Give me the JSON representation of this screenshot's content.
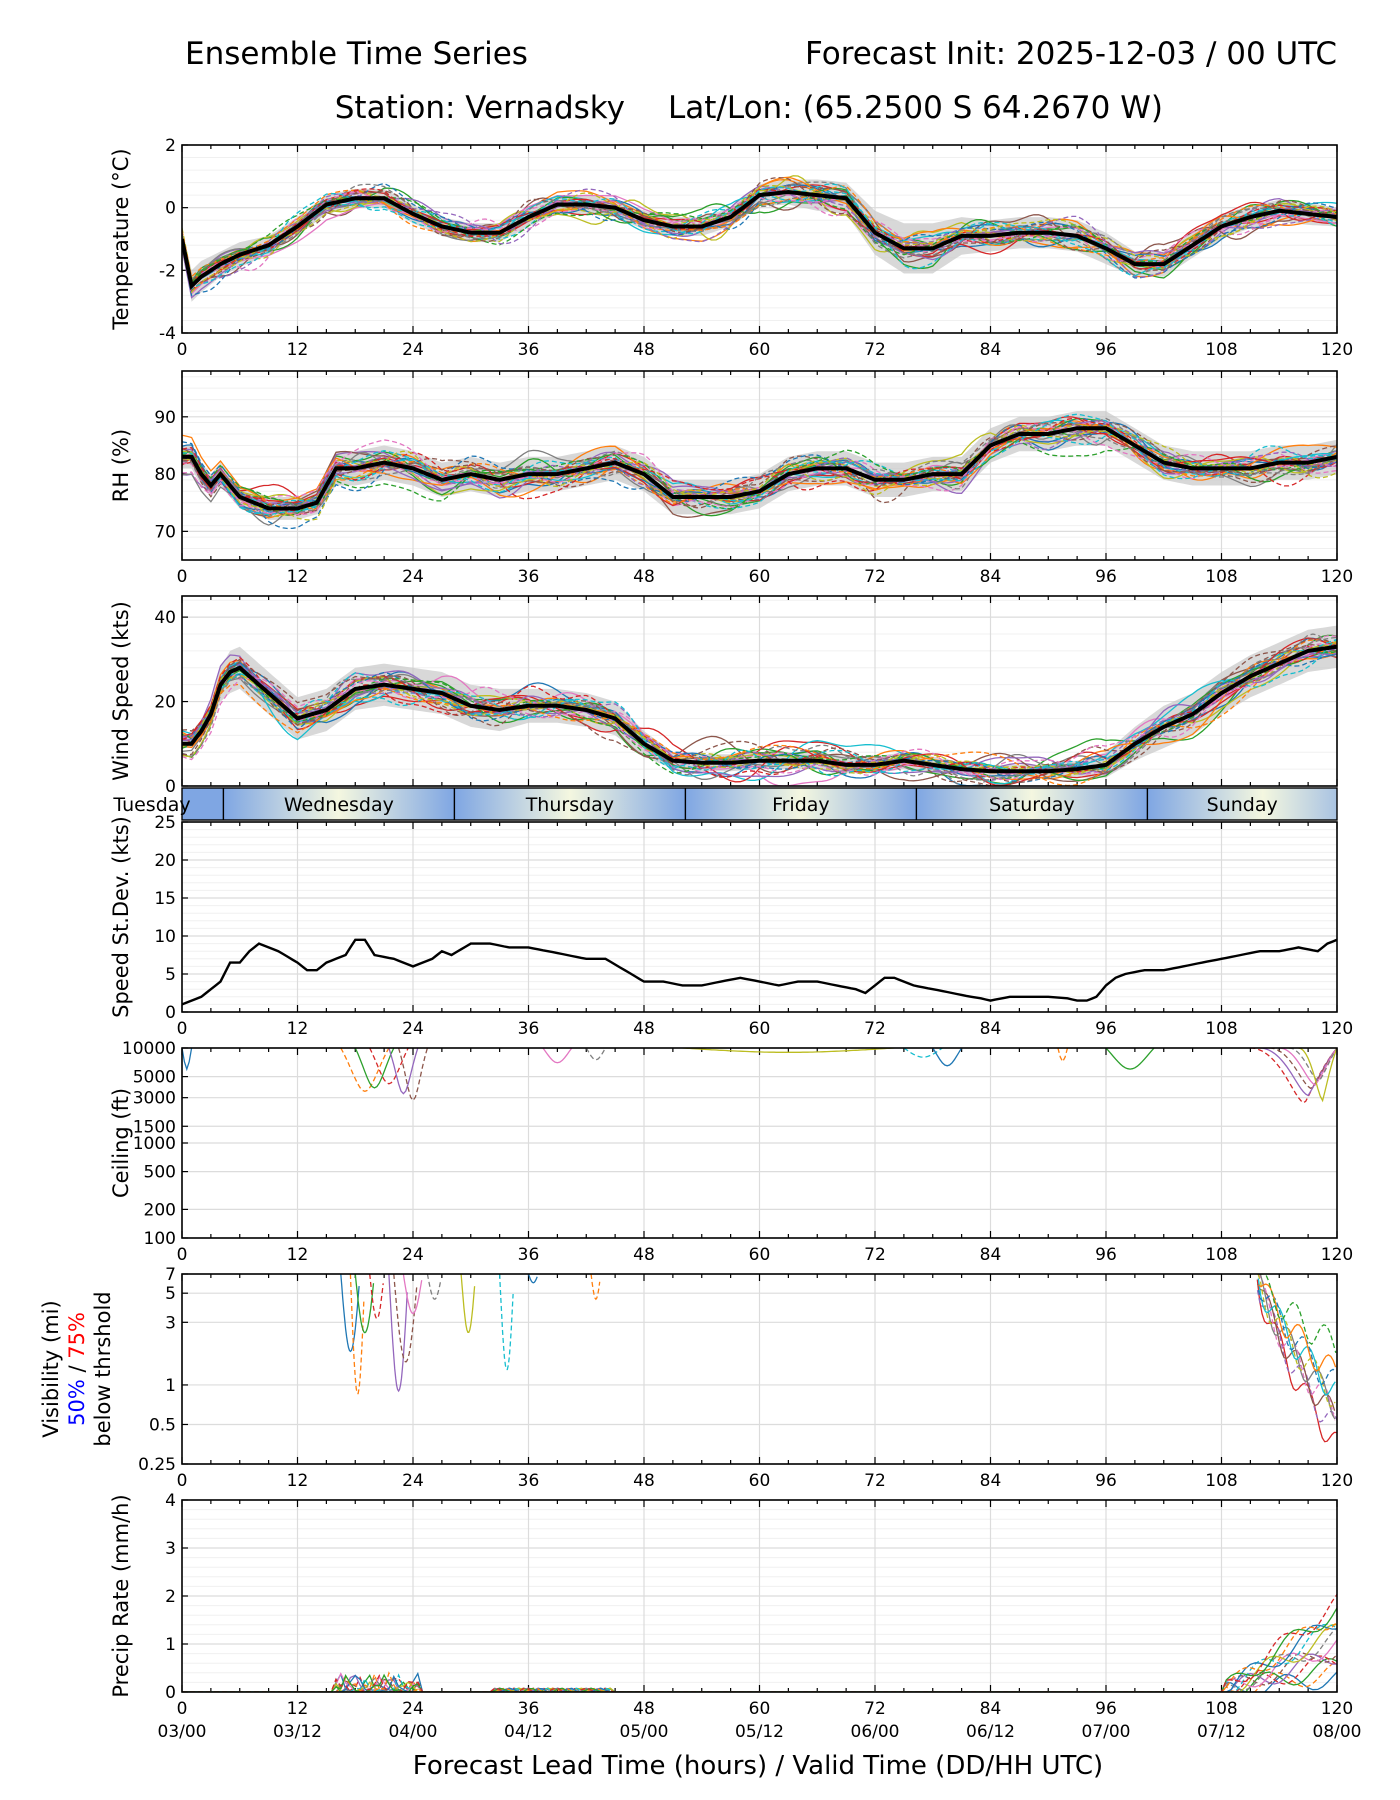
{
  "header": {
    "title_left": "Ensemble Time Series",
    "title_right": "Forecast Init: 2025-12-03 / 00 UTC",
    "station": "Station: Vernadsky",
    "latlon": "Lat/Lon: (65.2500 S 64.2670 W)"
  },
  "colors": {
    "member_palette": [
      "#1f77b4",
      "#ff7f0e",
      "#2ca02c",
      "#d62728",
      "#9467bd",
      "#8c564b",
      "#e377c2",
      "#7f7f7f",
      "#bcbd22",
      "#17becf"
    ],
    "mean": "#000000",
    "spread_band": "#c8c8c8",
    "day_band_edge": "#7fa6e3",
    "day_band_mid": "#f4f7e0",
    "vis_50": "#0000ff",
    "vis_75": "#ff0000"
  },
  "chart_data": {
    "type": "line",
    "x_range": [
      0,
      120
    ],
    "x_ticks": [
      0,
      12,
      24,
      36,
      48,
      60,
      72,
      84,
      96,
      108,
      120
    ],
    "x_tick_labels": [
      "0",
      "12",
      "24",
      "36",
      "48",
      "60",
      "72",
      "84",
      "96",
      "108",
      "120"
    ],
    "valid_time_labels": [
      "03/00",
      "03/12",
      "04/00",
      "04/12",
      "05/00",
      "05/12",
      "06/00",
      "06/12",
      "07/00",
      "07/12",
      "08/00"
    ],
    "xlabel": "Forecast Lead Time (hours) / Valid Time (DD/HH UTC)",
    "day_band": {
      "leading_label": "Tuesday",
      "days": [
        {
          "label": "Wednesday",
          "start": 4.3,
          "end": 28.3
        },
        {
          "label": "Thursday",
          "start": 28.3,
          "end": 52.3
        },
        {
          "label": "Friday",
          "start": 52.3,
          "end": 76.3
        },
        {
          "label": "Saturday",
          "start": 76.3,
          "end": 100.3
        },
        {
          "label": "Sunday",
          "start": 100.3,
          "end": 120
        }
      ]
    },
    "panels": [
      {
        "id": "temperature",
        "ylabel": "Temperature (°C)",
        "ylim": [
          -4,
          2
        ],
        "yticks": [
          -4,
          -2,
          0,
          2
        ],
        "ytick_labels": [
          "-4",
          "-2",
          "0",
          "2"
        ],
        "scale": "linear",
        "mean_x": [
          0,
          1,
          2,
          4,
          6,
          9,
          12,
          15,
          18,
          21,
          24,
          27,
          30,
          33,
          36,
          39,
          42,
          45,
          48,
          51,
          54,
          57,
          60,
          63,
          66,
          69,
          72,
          75,
          78,
          81,
          84,
          87,
          90,
          93,
          96,
          99,
          102,
          105,
          108,
          111,
          114,
          117,
          120
        ],
        "mean": [
          -1.0,
          -2.5,
          -2.2,
          -1.8,
          -1.5,
          -1.2,
          -0.6,
          0.1,
          0.3,
          0.3,
          -0.2,
          -0.6,
          -0.8,
          -0.8,
          -0.3,
          0.1,
          0.1,
          0.0,
          -0.4,
          -0.6,
          -0.6,
          -0.3,
          0.4,
          0.5,
          0.4,
          0.3,
          -0.8,
          -1.3,
          -1.3,
          -0.9,
          -0.9,
          -0.8,
          -0.8,
          -0.9,
          -1.3,
          -1.8,
          -1.8,
          -1.2,
          -0.6,
          -0.3,
          -0.1,
          -0.2,
          -0.3
        ],
        "spread": [
          0.3,
          0.5,
          0.5,
          0.4,
          0.4,
          0.3,
          0.3,
          0.3,
          0.3,
          0.3,
          0.3,
          0.3,
          0.3,
          0.3,
          0.3,
          0.3,
          0.3,
          0.3,
          0.3,
          0.3,
          0.3,
          0.3,
          0.35,
          0.4,
          0.5,
          0.5,
          0.7,
          0.8,
          0.8,
          0.6,
          0.5,
          0.5,
          0.5,
          0.5,
          0.5,
          0.4,
          0.4,
          0.4,
          0.4,
          0.35,
          0.35,
          0.35,
          0.3
        ],
        "member_noise": 0.55
      },
      {
        "id": "rh",
        "ylabel": "RH (%)",
        "ylim": [
          65,
          98
        ],
        "yticks": [
          70,
          80,
          90
        ],
        "ytick_labels": [
          "70",
          "80",
          "90"
        ],
        "scale": "linear",
        "mean_x": [
          0,
          1,
          2,
          3,
          4,
          6,
          9,
          12,
          14,
          16,
          18,
          21,
          24,
          27,
          30,
          33,
          36,
          39,
          42,
          45,
          48,
          51,
          54,
          57,
          60,
          63,
          66,
          69,
          72,
          75,
          78,
          81,
          84,
          87,
          90,
          93,
          96,
          99,
          102,
          105,
          108,
          111,
          114,
          117,
          120
        ],
        "mean": [
          83,
          83,
          80,
          78,
          80,
          76,
          74,
          74,
          75,
          81,
          81,
          82,
          81,
          79,
          80,
          79,
          80,
          80,
          81,
          82,
          80,
          76,
          76,
          76,
          77,
          80,
          81,
          81,
          79,
          79,
          80,
          80,
          85,
          87,
          87,
          88,
          88,
          85,
          82,
          81,
          81,
          81,
          82,
          82,
          83
        ],
        "spread": [
          2,
          2,
          2,
          2,
          2,
          2,
          2,
          2,
          2,
          3,
          3,
          3,
          3,
          3,
          3,
          3,
          3,
          3,
          3,
          3,
          3,
          3,
          3,
          3,
          3,
          3,
          3,
          3,
          3,
          3,
          3,
          3,
          3,
          3,
          3,
          3,
          3,
          3,
          3,
          3,
          3,
          3,
          3,
          3,
          3
        ],
        "member_noise": 3.5
      },
      {
        "id": "wind",
        "ylabel": "Wind Speed (kts)",
        "ylim": [
          0,
          45
        ],
        "yticks": [
          0,
          20,
          40
        ],
        "ytick_labels": [
          "0",
          "20",
          "40"
        ],
        "scale": "linear",
        "mean_x": [
          0,
          1,
          2,
          3,
          4,
          5,
          6,
          8,
          10,
          12,
          15,
          18,
          21,
          24,
          27,
          30,
          33,
          36,
          39,
          42,
          45,
          48,
          51,
          54,
          57,
          60,
          63,
          66,
          69,
          72,
          75,
          78,
          81,
          84,
          87,
          90,
          93,
          96,
          99,
          102,
          105,
          108,
          111,
          114,
          117,
          120
        ],
        "mean": [
          10,
          10,
          13,
          17,
          24,
          27,
          28,
          24,
          20,
          16,
          18,
          23,
          24,
          23,
          22,
          19,
          18,
          19,
          19,
          18,
          16,
          10,
          6,
          5.5,
          5.5,
          6,
          6,
          6,
          5,
          5,
          6,
          5,
          4,
          3.5,
          3.5,
          3.5,
          4,
          5,
          10,
          14,
          17,
          22,
          26,
          29,
          32,
          33
        ],
        "spread": [
          1,
          1,
          2,
          3,
          4,
          5,
          5,
          5,
          5,
          5,
          5,
          5,
          5,
          5,
          5,
          5,
          5,
          4,
          4,
          4,
          4,
          3,
          2,
          2,
          2,
          2,
          2,
          2,
          2,
          2,
          2,
          2,
          1.5,
          1.5,
          1.5,
          1.5,
          2,
          3,
          4,
          5,
          5,
          5,
          5,
          5,
          5,
          5
        ],
        "member_noise": 5
      },
      {
        "id": "speed_sd",
        "ylabel": "Speed St.Dev. (kts)",
        "ylim": [
          0,
          25
        ],
        "yticks": [
          0,
          5,
          10,
          15,
          20,
          25
        ],
        "ytick_labels": [
          "0",
          "5",
          "10",
          "15",
          "20",
          "25"
        ],
        "scale": "linear",
        "mean_x": [
          0,
          2,
          4,
          5,
          6,
          7,
          8,
          10,
          12,
          13,
          14,
          15,
          16,
          17,
          18,
          19,
          20,
          22,
          24,
          26,
          27,
          28,
          30,
          32,
          34,
          36,
          38,
          40,
          42,
          44,
          46,
          48,
          50,
          52,
          54,
          56,
          58,
          60,
          62,
          64,
          66,
          68,
          70,
          71,
          72,
          73,
          74,
          76,
          78,
          80,
          82,
          83,
          84,
          86,
          88,
          90,
          92,
          93,
          94,
          95,
          96,
          97,
          98,
          100,
          102,
          104,
          106,
          108,
          110,
          112,
          114,
          116,
          118,
          119,
          120
        ],
        "mean": [
          1,
          2,
          4,
          6.5,
          6.5,
          8,
          9,
          8,
          6.5,
          5.5,
          5.5,
          6.5,
          7,
          7.5,
          9.5,
          9.5,
          7.5,
          7,
          6,
          7,
          8,
          7.5,
          9,
          9,
          8.5,
          8.5,
          8,
          7.5,
          7,
          7,
          5.5,
          4,
          4,
          3.5,
          3.5,
          4,
          4.5,
          4,
          3.5,
          4,
          4,
          3.5,
          3,
          2.5,
          3.5,
          4.5,
          4.5,
          3.5,
          3,
          2.5,
          2,
          1.8,
          1.5,
          2,
          2,
          2,
          1.8,
          1.5,
          1.5,
          2,
          3.5,
          4.5,
          5,
          5.5,
          5.5,
          6,
          6.5,
          7,
          7.5,
          8,
          8,
          8.5,
          8,
          9,
          9.5
        ]
      },
      {
        "id": "ceiling",
        "ylabel": "Ceiling (ft)",
        "ylim": [
          100,
          10000
        ],
        "yticks": [
          100,
          200,
          500,
          1000,
          1500,
          3000,
          5000,
          10000
        ],
        "ytick_labels": [
          "100",
          "200",
          "500",
          "1000",
          "1500",
          "3000",
          "5000",
          "10000"
        ],
        "scale": "log"
      },
      {
        "id": "visibility",
        "ylabel": "Visibility (mi)",
        "ylabel_50": "50%",
        "ylabel_sep": " / ",
        "ylabel_75": "75%",
        "ylabel_below": "below thrshold",
        "ylim": [
          0.25,
          7
        ],
        "yticks": [
          0.25,
          0.5,
          1,
          3,
          5,
          7
        ],
        "ytick_labels": [
          "0.25",
          "0.5",
          "1",
          "3",
          "5",
          "7"
        ],
        "scale": "log"
      },
      {
        "id": "precip",
        "ylabel": "Precip Rate (mm/h)",
        "ylim": [
          0,
          4
        ],
        "yticks": [
          0,
          1,
          2,
          3,
          4
        ],
        "ytick_labels": [
          "0",
          "1",
          "2",
          "3",
          "4"
        ],
        "scale": "linear"
      }
    ]
  }
}
